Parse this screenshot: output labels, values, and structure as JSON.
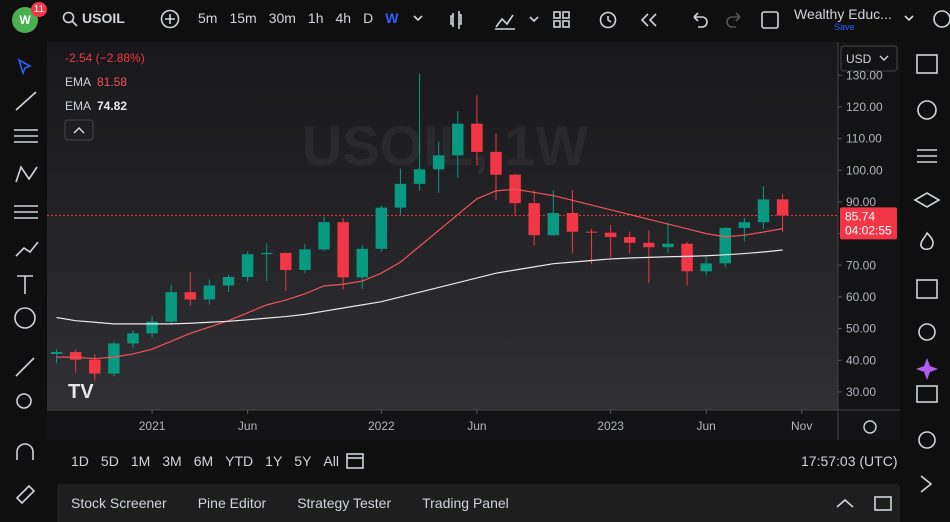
{
  "toolbar": {
    "badge": "11",
    "symbol": "USOIL",
    "intervals": [
      "5m",
      "15m",
      "30m",
      "1h",
      "4h",
      "D",
      "W"
    ],
    "layout_name": "Wealthy Educ...",
    "save": "Save"
  },
  "chart_data": {
    "type": "candlestick",
    "watermark": "USOIL, 1W",
    "change": "-2.54 (−2.88%)",
    "currency": "USD",
    "open": [
      42,
      42.6,
      40.2,
      35.8,
      45.3,
      48.5,
      52.2,
      61.5,
      59.2,
      63.6,
      66.3,
      73.5,
      73.9,
      68.5,
      75,
      83.6,
      66.2,
      75.2,
      88.2,
      95.7,
      100.3,
      104.7,
      114.7,
      105.8,
      98.6,
      89.6,
      79.5,
      86.5,
      80.6,
      80.3,
      78.9,
      77.1,
      75.7,
      76.8,
      68.1,
      70.6,
      81.8,
      83.6,
      90.8
    ],
    "high": [
      43.5,
      43.4,
      41.9,
      46,
      49.4,
      53.9,
      63.8,
      67.9,
      65.5,
      67,
      74.4,
      76.9,
      74,
      76.7,
      85.4,
      84.9,
      76.5,
      88.8,
      100.5,
      130.5,
      109,
      118.7,
      123.7,
      111.5,
      98.9,
      93.6,
      93.6,
      93.7,
      81.5,
      82.7,
      80.6,
      81,
      83.5,
      77.4,
      72.7,
      82,
      84.9,
      95,
      92.5
    ],
    "low": [
      39,
      36.1,
      33.6,
      34.9,
      44,
      47.2,
      51.5,
      57.3,
      57.6,
      61.6,
      64.9,
      65,
      61.8,
      67.5,
      74.5,
      62.4,
      62.5,
      74.3,
      85.7,
      93.5,
      92.9,
      97.6,
      101.5,
      90.6,
      85.7,
      76.3,
      79.3,
      73.8,
      70.3,
      72.5,
      73.8,
      64.4,
      73.9,
      63.6,
      66.8,
      69.3,
      77.6,
      81.4,
      80.6
    ],
    "close": [
      42.6,
      40.2,
      35.8,
      45.3,
      48.5,
      52.2,
      61.5,
      59.2,
      63.6,
      66.3,
      73.5,
      73.9,
      68.5,
      75,
      83.6,
      66.2,
      75.2,
      88.2,
      95.7,
      100.3,
      104.7,
      114.7,
      105.8,
      98.6,
      89.6,
      79.5,
      86.5,
      80.6,
      80.3,
      78.9,
      77.1,
      75.7,
      76.8,
      68.1,
      70.6,
      81.8,
      83.6,
      90.8,
      85.74
    ],
    "up_color": "#089981",
    "down_color": "#f23645",
    "series": [
      {
        "name": "EMA",
        "color": "#f0525a",
        "values": [
          41,
          41,
          40.5,
          41,
          42,
          43.5,
          46,
          48.5,
          50.5,
          52.5,
          55,
          57.5,
          59,
          61,
          63.5,
          64,
          65,
          67.5,
          71,
          76,
          81,
          86,
          91,
          93.5,
          94,
          93,
          92,
          90.5,
          89,
          87.5,
          86,
          84.5,
          83,
          81.5,
          80,
          79,
          79.5,
          80.5,
          81.58
        ]
      },
      {
        "name": "EMA",
        "color": "#e8e8e8",
        "values": [
          53.5,
          52.5,
          52,
          51.5,
          51.5,
          51.5,
          51.5,
          51.7,
          52,
          52.3,
          52.8,
          53.3,
          53.8,
          54.5,
          55.5,
          56.5,
          57.5,
          58.5,
          60,
          61.5,
          63,
          64.5,
          66,
          67.5,
          68.5,
          69.5,
          70.5,
          71,
          71.5,
          72,
          72.3,
          72.5,
          72.7,
          72.8,
          73,
          73.3,
          73.7,
          74.2,
          74.82
        ]
      }
    ],
    "last_price": 85.74,
    "countdown": "04:02:55",
    "xlim": [
      -0.5,
      40.9
    ],
    "xticks": [
      {
        "value": 5,
        "label": "2021"
      },
      {
        "value": 10,
        "label": "Jun"
      },
      {
        "value": 17,
        "label": "2022"
      },
      {
        "value": 22,
        "label": "Jun"
      },
      {
        "value": 29,
        "label": "2023"
      },
      {
        "value": 34,
        "label": "Jun"
      },
      {
        "value": 39,
        "label": "Nov"
      }
    ],
    "ylim": [
      24.3,
      140.5
    ],
    "yticks": [
      {
        "value": 30,
        "label": "30.00"
      },
      {
        "value": 40,
        "label": "40.00"
      },
      {
        "value": 50,
        "label": "50.00"
      },
      {
        "value": 60,
        "label": "60.00"
      },
      {
        "value": 70,
        "label": "70.00"
      },
      {
        "value": 80,
        "label": "80.00"
      },
      {
        "value": 90,
        "label": "90.00"
      },
      {
        "value": 100,
        "label": "100.00"
      },
      {
        "value": 110,
        "label": "110.00"
      },
      {
        "value": 120,
        "label": "120.00"
      },
      {
        "value": 130,
        "label": "130.00"
      }
    ]
  },
  "range_bar": {
    "ranges": [
      "1D",
      "5D",
      "1M",
      "3M",
      "6M",
      "YTD",
      "1Y",
      "5Y",
      "All"
    ],
    "clock": "17:57:03 (UTC)"
  },
  "panel_tabs": [
    "Stock Screener",
    "Pine Editor",
    "Strategy Tester",
    "Trading Panel"
  ]
}
